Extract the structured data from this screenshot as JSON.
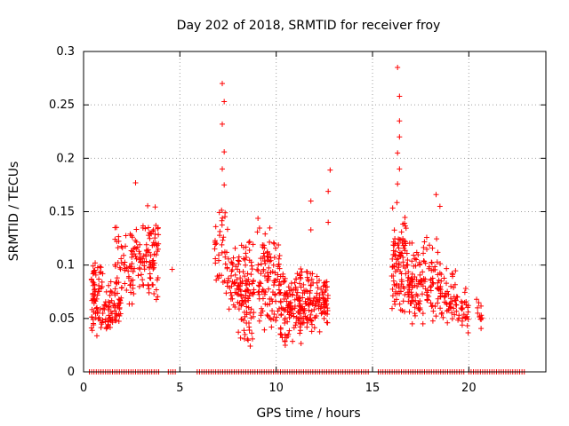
{
  "chart_data": {
    "type": "scatter",
    "title": "Day 202 of 2018, SRMTID for receiver froy",
    "xlabel": "GPS time / hours",
    "ylabel": "SRMTID / TECUs",
    "xlim": [
      0,
      24
    ],
    "ylim": [
      0,
      0.3
    ],
    "x_ticks": [
      0,
      5,
      10,
      15,
      20
    ],
    "x_tick_labels": [
      "0",
      "5",
      "10",
      "15",
      "20"
    ],
    "y_ticks": [
      0,
      0.05,
      0.1,
      0.15,
      0.2,
      0.25,
      0.3
    ],
    "y_tick_labels": [
      "0",
      "0.05",
      "0.1",
      "0.15",
      "0.2",
      "0.25",
      "0.3"
    ],
    "grid": true,
    "marker": "plus",
    "series_color": "#ff0000",
    "clusters": [
      {
        "x": [
          0.4,
          1.0
        ],
        "y": [
          0.03,
          0.115
        ],
        "n": 70
      },
      {
        "x": [
          1.0,
          2.0
        ],
        "y": [
          0.03,
          0.09
        ],
        "n": 70
      },
      {
        "x": [
          1.6,
          2.6
        ],
        "y": [
          0.06,
          0.145
        ],
        "n": 45
      },
      {
        "x": [
          2.4,
          3.2
        ],
        "y": [
          0.07,
          0.14
        ],
        "n": 45
      },
      {
        "x": [
          3.2,
          3.9
        ],
        "y": [
          0.06,
          0.16
        ],
        "n": 65
      },
      {
        "x": [
          6.8,
          7.5
        ],
        "y": [
          0.055,
          0.16
        ],
        "n": 40
      },
      {
        "x": [
          7.5,
          8.2
        ],
        "y": [
          0.05,
          0.12
        ],
        "n": 40
      },
      {
        "x": [
          8.0,
          8.9
        ],
        "y": [
          0.02,
          0.13
        ],
        "n": 95
      },
      {
        "x": [
          9.0,
          10.2
        ],
        "y": [
          0.035,
          0.145
        ],
        "n": 110
      },
      {
        "x": [
          10.2,
          11.3
        ],
        "y": [
          0.022,
          0.1
        ],
        "n": 120
      },
      {
        "x": [
          11.3,
          12.3
        ],
        "y": [
          0.03,
          0.1
        ],
        "n": 90
      },
      {
        "x": [
          12.3,
          12.7
        ],
        "y": [
          0.04,
          0.09
        ],
        "n": 40
      },
      {
        "x": [
          16.0,
          16.8
        ],
        "y": [
          0.05,
          0.16
        ],
        "n": 95
      },
      {
        "x": [
          16.8,
          17.6
        ],
        "y": [
          0.04,
          0.13
        ],
        "n": 75
      },
      {
        "x": [
          17.6,
          18.6
        ],
        "y": [
          0.04,
          0.13
        ],
        "n": 75
      },
      {
        "x": [
          18.6,
          19.4
        ],
        "y": [
          0.04,
          0.1
        ],
        "n": 45
      },
      {
        "x": [
          19.4,
          20.0
        ],
        "y": [
          0.03,
          0.085
        ],
        "n": 30
      },
      {
        "x": [
          20.4,
          20.7
        ],
        "y": [
          0.035,
          0.075
        ],
        "n": 12
      }
    ],
    "outliers": [
      {
        "x": 2.7,
        "y": 0.177
      },
      {
        "x": 4.6,
        "y": 0.096
      },
      {
        "x": 7.2,
        "y": 0.27
      },
      {
        "x": 7.3,
        "y": 0.253
      },
      {
        "x": 7.2,
        "y": 0.232
      },
      {
        "x": 7.3,
        "y": 0.206
      },
      {
        "x": 7.2,
        "y": 0.19
      },
      {
        "x": 7.3,
        "y": 0.175
      },
      {
        "x": 12.8,
        "y": 0.189
      },
      {
        "x": 12.7,
        "y": 0.169
      },
      {
        "x": 11.8,
        "y": 0.16
      },
      {
        "x": 11.8,
        "y": 0.133
      },
      {
        "x": 12.7,
        "y": 0.14
      },
      {
        "x": 16.3,
        "y": 0.285
      },
      {
        "x": 16.4,
        "y": 0.258
      },
      {
        "x": 16.4,
        "y": 0.235
      },
      {
        "x": 16.4,
        "y": 0.22
      },
      {
        "x": 16.3,
        "y": 0.205
      },
      {
        "x": 16.4,
        "y": 0.19
      },
      {
        "x": 16.3,
        "y": 0.176
      },
      {
        "x": 18.3,
        "y": 0.166
      },
      {
        "x": 18.5,
        "y": 0.155
      }
    ],
    "zero_segments": [
      [
        0.3,
        4.0
      ],
      [
        4.4,
        4.8
      ],
      [
        5.9,
        14.8
      ],
      [
        15.3,
        19.8
      ],
      [
        20.0,
        22.9
      ]
    ]
  }
}
